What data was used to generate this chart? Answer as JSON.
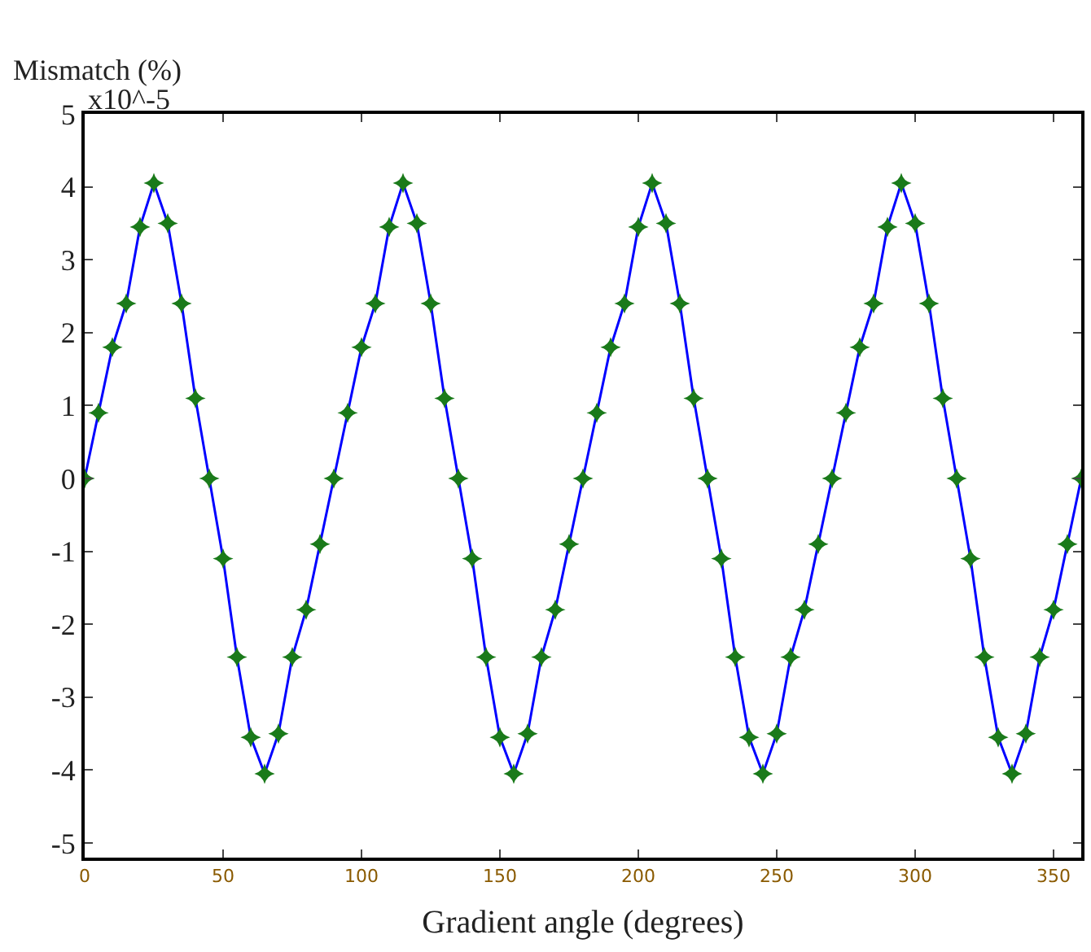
{
  "chart_data": {
    "type": "line",
    "ylabel": "Mismatch (%)",
    "xlabel": "Gradient angle (degrees)",
    "annotations": [
      "x10^-5"
    ],
    "x": [
      0,
      5,
      10,
      15,
      20,
      25,
      30,
      35,
      40,
      45,
      50,
      55,
      60,
      65,
      70,
      75,
      80,
      85,
      90,
      95,
      100,
      105,
      110,
      115,
      120,
      125,
      130,
      135,
      140,
      145,
      150,
      155,
      160,
      165,
      170,
      175,
      180,
      185,
      190,
      195,
      200,
      205,
      210,
      215,
      220,
      225,
      230,
      235,
      240,
      245,
      250,
      255,
      260,
      265,
      270,
      275,
      280,
      285,
      290,
      295,
      300,
      305,
      310,
      315,
      320,
      325,
      330,
      335,
      340,
      345,
      350,
      355,
      360
    ],
    "series": [
      {
        "color": "#0000ff",
        "colors": [
          "#1a7a1a",
          "#1a7a1a",
          "#1a7a1a",
          "#1a7a1a",
          "#1a7a1a",
          "#1a7a1a",
          "#1a7a1a",
          "#1a7a1a",
          "#1a7a1a",
          "#1a7a1a",
          "#1a7a1a",
          "#1a7a1a",
          "#1a7a1a",
          "#1a7a1a",
          "#1a7a1a",
          "#1a7a1a",
          "#1a7a1a",
          "#1a7a1a",
          "#1a7a1a",
          "#1a7a1a",
          "#1a7a1a",
          "#1a7a1a",
          "#1a7a1a",
          "#1a7a1a",
          "#1a7a1a",
          "#1a7a1a",
          "#1a7a1a",
          "#1a7a1a",
          "#1a7a1a",
          "#1a7a1a",
          "#1a7a1a",
          "#1a7a1a",
          "#1a7a1a",
          "#1a7a1a",
          "#1a7a1a",
          "#1a7a1a",
          "#1a7a1a",
          "#1a7a1a",
          "#1a7a1a",
          "#1a7a1a",
          "#1a7a1a",
          "#1a7a1a",
          "#1a7a1a",
          "#1a7a1a",
          "#1a7a1a",
          "#1a7a1a",
          "#1a7a1a",
          "#1a7a1a",
          "#1a7a1a",
          "#1a7a1a",
          "#1a7a1a",
          "#1a7a1a",
          "#1a7a1a",
          "#1a7a1a",
          "#1a7a1a",
          "#1a7a1a",
          "#1a7a1a",
          "#1a7a1a",
          "#1a7a1a",
          "#1a7a1a",
          "#1a7a1a",
          "#1a7a1a",
          "#1a7a1a",
          "#1a7a1a",
          "#1a7a1a",
          "#1a7a1a",
          "#1a7a1a",
          "#1a7a1a",
          "#1a7a1a",
          "#1a7a1a",
          "#1a7a1a",
          "#1a7a1a",
          "#1a7a1a"
        ],
        "values": [
          0,
          0.9,
          1.8,
          2.4,
          3.45,
          4.05,
          3.5,
          2.4,
          1.1,
          0,
          -1.1,
          -2.45,
          -3.55,
          -4.05,
          -3.5,
          -2.45,
          -1.8,
          -0.9,
          0,
          0.9,
          1.8,
          2.4,
          3.45,
          4.05,
          3.5,
          2.4,
          1.1,
          0,
          -1.1,
          -2.45,
          -3.55,
          -4.05,
          -3.5,
          -2.45,
          -1.8,
          -0.9,
          0,
          0.9,
          1.8,
          2.4,
          3.45,
          4.05,
          3.5,
          2.4,
          1.1,
          0,
          -1.1,
          -2.45,
          -3.55,
          -4.05,
          -3.5,
          -2.45,
          -1.8,
          -0.9,
          0,
          0.9,
          1.8,
          2.4,
          3.45,
          4.05,
          3.5,
          2.4,
          1.1,
          0,
          -1.1,
          -2.45,
          -3.55,
          -4.05,
          -3.5,
          -2.45,
          -1.8,
          -0.9,
          0
        ]
      }
    ],
    "xlim": [
      0,
      360
    ],
    "xticks": [
      0,
      50,
      100,
      150,
      200,
      250,
      300,
      350
    ],
    "ylim": [
      -5.2,
      5
    ],
    "yticks": [
      -5,
      -4,
      -3,
      -2,
      -1,
      0,
      1,
      2,
      3,
      4,
      5
    ],
    "marker": "star",
    "line_style": "solid"
  }
}
